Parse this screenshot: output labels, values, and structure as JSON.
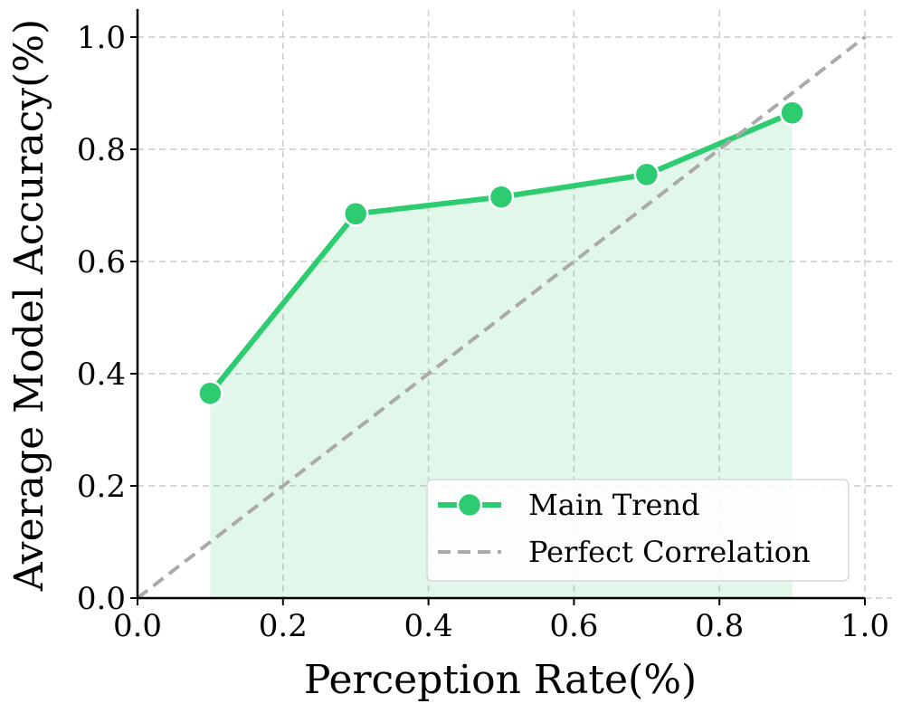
{
  "chart_data": {
    "type": "line",
    "title": "",
    "xlabel": "Perception Rate(%)",
    "ylabel": "Average Model Accuracy(%)",
    "xlim": [
      0.0,
      1.0
    ],
    "ylim": [
      0.0,
      1.0
    ],
    "xticks": [
      "0.0",
      "0.2",
      "0.4",
      "0.6",
      "0.8",
      "1.0"
    ],
    "yticks": [
      "0.0",
      "0.2",
      "0.4",
      "0.6",
      "0.8",
      "1.0"
    ],
    "grid": true,
    "legend_position": "bottom-right",
    "series": [
      {
        "name": "Main Trend",
        "style": "solid-with-markers",
        "color": "#2ecc71",
        "fill_under": true,
        "x": [
          0.1,
          0.3,
          0.5,
          0.7,
          0.9
        ],
        "y": [
          0.365,
          0.685,
          0.715,
          0.755,
          0.865
        ]
      },
      {
        "name": "Perfect Correlation",
        "style": "dashed",
        "color": "#aaaaaa",
        "x": [
          0.0,
          1.0
        ],
        "y": [
          0.0,
          1.0
        ]
      }
    ]
  }
}
